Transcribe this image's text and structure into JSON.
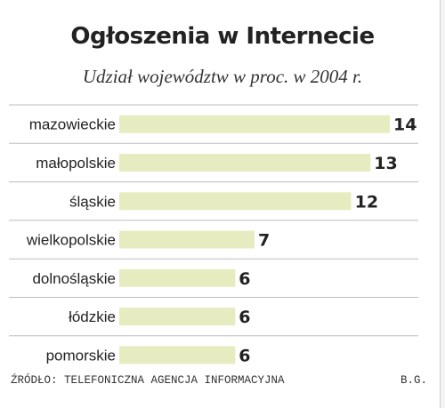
{
  "chart_data": {
    "type": "bar",
    "orientation": "horizontal",
    "title": "Ogłoszenia w Internecie",
    "subtitle": "Udział województw w proc. w 2004 r.",
    "categories": [
      "mazowieckie",
      "małopolskie",
      "śląskie",
      "wielkopolskie",
      "dolnośląskie",
      "łódzkie",
      "pomorskie"
    ],
    "values": [
      14,
      13,
      12,
      7,
      6,
      6,
      6
    ],
    "xlim": [
      0,
      14
    ],
    "grid": false,
    "source": "ŹRÓDŁO: TELEFONICZNA AGENCJA INFORMACYJNA",
    "credit": "B.G."
  },
  "colors": {
    "bar": "#e7ecc0",
    "separator": "#bdbdbd",
    "text": "#222222"
  }
}
